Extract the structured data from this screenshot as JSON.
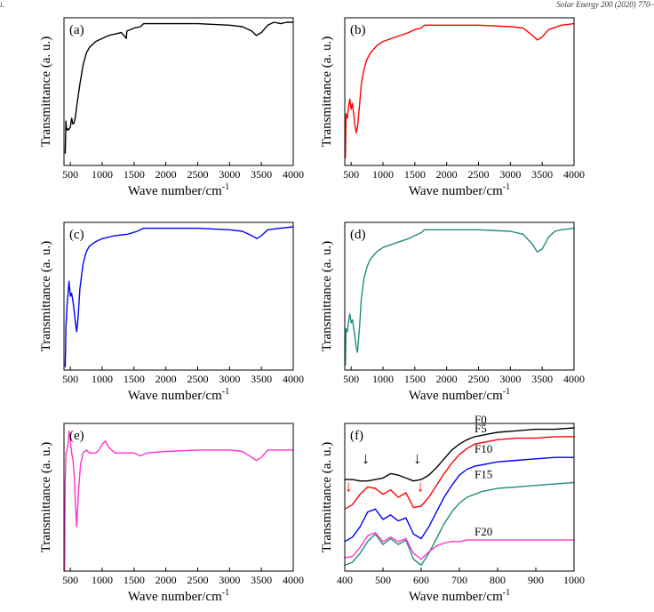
{
  "header": {
    "left": "i.",
    "right": "Solar Energy 200 (2020) 770–"
  },
  "chart_data": [
    {
      "type": "line",
      "panel": "(a)",
      "color": "#000000",
      "xlabel": "Wave number/cm",
      "xlabel_sup": "-1",
      "ylabel": "Transmittance (a. u.)",
      "xlim": [
        400,
        4000
      ],
      "ylim": [
        0,
        100
      ],
      "xticks": [
        500,
        1000,
        1500,
        2000,
        2500,
        3000,
        3500,
        4000
      ],
      "x": [
        420,
        430,
        440,
        450,
        470,
        500,
        520,
        540,
        560,
        580,
        600,
        650,
        700,
        750,
        800,
        900,
        1000,
        1100,
        1200,
        1300,
        1380,
        1385,
        1390,
        1500,
        1600,
        1650,
        1700,
        2000,
        2500,
        3000,
        3200,
        3350,
        3420,
        3500,
        3600,
        3700,
        3800,
        3900,
        4000
      ],
      "y": [
        8,
        30,
        24,
        25,
        24,
        26,
        32,
        28,
        29,
        33,
        40,
        55,
        68,
        76,
        80,
        84,
        86,
        88,
        89,
        90,
        86,
        90,
        91,
        93,
        94,
        96,
        96,
        96,
        96,
        95,
        94,
        91,
        88,
        90,
        95,
        97,
        96,
        97,
        97
      ]
    },
    {
      "type": "line",
      "panel": "(b)",
      "color": "#ff0000",
      "xlabel": "Wave number/cm",
      "xlabel_sup": "-1",
      "ylabel": "Transmittance (a. u.)",
      "xlim": [
        400,
        4000
      ],
      "ylim": [
        0,
        100
      ],
      "xticks": [
        500,
        1000,
        1500,
        2000,
        2500,
        3000,
        3500,
        4000
      ],
      "x": [
        410,
        420,
        440,
        460,
        480,
        500,
        520,
        540,
        560,
        580,
        600,
        630,
        660,
        700,
        750,
        800,
        900,
        1000,
        1200,
        1400,
        1500,
        1600,
        1650,
        1700,
        2000,
        2500,
        3000,
        3200,
        3350,
        3420,
        3500,
        3600,
        3800,
        4000
      ],
      "y": [
        5,
        35,
        32,
        40,
        45,
        38,
        42,
        35,
        27,
        22,
        26,
        40,
        55,
        65,
        72,
        76,
        81,
        84,
        87,
        90,
        92,
        93,
        95,
        95,
        95,
        95,
        94,
        93,
        88,
        85,
        87,
        92,
        95,
        96
      ]
    },
    {
      "type": "line",
      "panel": "(c)",
      "color": "#0000ff",
      "xlabel": "Wave number/cm",
      "xlabel_sup": "-1",
      "ylabel": "Transmittance (a. u.)",
      "xlim": [
        400,
        4000
      ],
      "ylim": [
        0,
        100
      ],
      "xticks": [
        500,
        1000,
        1500,
        2000,
        2500,
        3000,
        3500,
        4000
      ],
      "x": [
        420,
        430,
        450,
        470,
        480,
        500,
        520,
        540,
        560,
        580,
        600,
        620,
        650,
        700,
        750,
        800,
        900,
        1000,
        1200,
        1400,
        1550,
        1600,
        1650,
        1700,
        2000,
        2500,
        3000,
        3200,
        3350,
        3430,
        3500,
        3600,
        3800,
        4000
      ],
      "y": [
        2,
        30,
        45,
        55,
        60,
        50,
        52,
        47,
        40,
        32,
        26,
        35,
        55,
        72,
        80,
        84,
        87,
        89,
        91,
        92,
        94,
        95,
        96,
        96,
        96,
        96,
        95,
        94,
        91,
        89,
        91,
        95,
        96,
        97
      ]
    },
    {
      "type": "line",
      "panel": "(d)",
      "color": "#1e8c7e",
      "xlabel": "Wave number/cm",
      "xlabel_sup": "-1",
      "ylabel": "Transmittance (a. u.)",
      "xlim": [
        400,
        4000
      ],
      "ylim": [
        0,
        100
      ],
      "xticks": [
        500,
        1000,
        1500,
        2000,
        2500,
        3000,
        3500,
        4000
      ],
      "x": [
        410,
        420,
        440,
        460,
        480,
        500,
        520,
        540,
        560,
        580,
        600,
        630,
        660,
        700,
        750,
        800,
        900,
        1000,
        1200,
        1400,
        1500,
        1600,
        1650,
        1700,
        2000,
        2500,
        3000,
        3200,
        3350,
        3420,
        3500,
        3600,
        3700,
        3800,
        4000
      ],
      "y": [
        3,
        28,
        26,
        33,
        38,
        32,
        34,
        29,
        22,
        15,
        12,
        28,
        48,
        62,
        70,
        75,
        80,
        83,
        86,
        89,
        91,
        93,
        95,
        95,
        95,
        95,
        94,
        92,
        85,
        80,
        82,
        90,
        94,
        95,
        96
      ]
    },
    {
      "type": "line",
      "panel": "(e)",
      "color": "#ff33cc",
      "xlabel": "Wave number/cm",
      "xlabel_sup": "-1",
      "ylabel": "Transmittance (a. u.)",
      "xlim": [
        400,
        4000
      ],
      "ylim": [
        0,
        100
      ],
      "xticks": [
        500,
        1000,
        1500,
        2000,
        2500,
        3000,
        3500,
        4000
      ],
      "x": [
        410,
        420,
        430,
        450,
        470,
        480,
        490,
        500,
        520,
        540,
        560,
        580,
        600,
        630,
        660,
        700,
        750,
        800,
        900,
        950,
        1000,
        1050,
        1100,
        1200,
        1300,
        1400,
        1500,
        1600,
        1700,
        2000,
        2500,
        3000,
        3200,
        3350,
        3420,
        3500,
        3600,
        3800,
        4000
      ],
      "y": [
        0,
        60,
        80,
        82,
        88,
        95,
        92,
        88,
        80,
        76,
        65,
        45,
        30,
        55,
        72,
        80,
        82,
        80,
        80,
        82,
        86,
        88,
        84,
        80,
        80,
        80,
        80,
        78,
        80,
        81,
        82,
        82,
        81,
        77,
        75,
        77,
        82,
        82,
        82
      ]
    },
    {
      "type": "line",
      "panel": "(f)",
      "xlabel": "Wave number/cm",
      "xlabel_sup": "-1",
      "ylabel": "Transmittance (a. u.)",
      "xlim": [
        400,
        1000
      ],
      "ylim": [
        0,
        100
      ],
      "xticks": [
        400,
        500,
        600,
        700,
        800,
        900,
        1000
      ],
      "x": [
        400,
        420,
        440,
        460,
        480,
        500,
        520,
        540,
        560,
        580,
        600,
        620,
        640,
        660,
        680,
        700,
        720,
        740,
        760,
        780,
        800,
        850,
        900,
        950,
        1000
      ],
      "series": [
        {
          "name": "F0",
          "color": "#000000",
          "y": [
            62,
            62,
            61,
            61,
            62,
            63,
            66,
            65,
            63,
            61,
            62,
            65,
            70,
            76,
            82,
            86,
            89,
            91,
            92,
            93,
            94,
            95,
            96,
            96,
            97
          ]
        },
        {
          "name": "F5",
          "color": "#ff0000",
          "y": [
            42,
            45,
            52,
            57,
            56,
            52,
            55,
            50,
            53,
            43,
            44,
            50,
            58,
            66,
            73,
            79,
            83,
            86,
            87,
            88,
            89,
            90,
            90,
            91,
            91
          ]
        },
        {
          "name": "F10",
          "color": "#0000ff",
          "y": [
            20,
            23,
            30,
            40,
            42,
            35,
            38,
            34,
            36,
            25,
            22,
            30,
            40,
            50,
            58,
            65,
            69,
            71,
            72,
            73,
            74,
            75,
            76,
            77,
            77
          ]
        },
        {
          "name": "F15",
          "color": "#1e8c7e",
          "y": [
            4,
            6,
            12,
            20,
            25,
            18,
            22,
            18,
            21,
            8,
            4,
            12,
            22,
            32,
            40,
            46,
            50,
            52,
            54,
            55,
            56,
            57,
            58,
            59,
            60
          ]
        },
        {
          "name": "F20",
          "color": "#ff33cc",
          "y": [
            9,
            10,
            16,
            24,
            26,
            20,
            23,
            20,
            22,
            12,
            8,
            13,
            17,
            19,
            20,
            20,
            21,
            21,
            21,
            21,
            21,
            21,
            21,
            21,
            21
          ]
        }
      ],
      "annotations": [
        {
          "text": "↓",
          "x": 455,
          "y": 73,
          "color": "#000000"
        },
        {
          "text": "↓",
          "x": 590,
          "y": 73,
          "color": "#000000"
        },
        {
          "text": "↓",
          "x": 410,
          "y": 54,
          "color": "#ff0000"
        },
        {
          "text": "↓",
          "x": 598,
          "y": 54,
          "color": "#ff0000"
        }
      ]
    }
  ]
}
